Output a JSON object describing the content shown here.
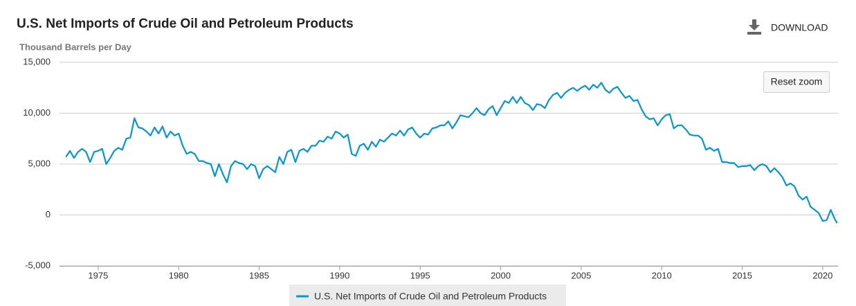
{
  "chart_data": {
    "type": "line",
    "title": "U.S. Net Imports of Crude Oil and Petroleum Products",
    "y_axis_label": "Thousand Barrels per Day",
    "download_label": "DOWNLOAD",
    "reset_zoom_label": "Reset zoom",
    "x": [
      1973,
      1973.25,
      1973.5,
      1973.75,
      1974,
      1974.25,
      1974.5,
      1974.75,
      1975,
      1975.25,
      1975.5,
      1975.75,
      1976,
      1976.25,
      1976.5,
      1976.75,
      1977,
      1977.25,
      1977.5,
      1977.75,
      1978,
      1978.25,
      1978.5,
      1978.75,
      1979,
      1979.25,
      1979.5,
      1979.75,
      1980,
      1980.25,
      1980.5,
      1980.75,
      1981,
      1981.25,
      1981.5,
      1981.75,
      1982,
      1982.25,
      1982.5,
      1982.75,
      1983,
      1983.25,
      1983.5,
      1983.75,
      1984,
      1984.25,
      1984.5,
      1984.75,
      1985,
      1985.25,
      1985.5,
      1985.75,
      1986,
      1986.25,
      1986.5,
      1986.75,
      1987,
      1987.25,
      1987.5,
      1987.75,
      1988,
      1988.25,
      1988.5,
      1988.75,
      1989,
      1989.25,
      1989.5,
      1989.75,
      1990,
      1990.25,
      1990.5,
      1990.75,
      1991,
      1991.25,
      1991.5,
      1991.75,
      1992,
      1992.25,
      1992.5,
      1992.75,
      1993,
      1993.25,
      1993.5,
      1993.75,
      1994,
      1994.25,
      1994.5,
      1994.75,
      1995,
      1995.25,
      1995.5,
      1995.75,
      1996,
      1996.25,
      1996.5,
      1996.75,
      1997,
      1997.25,
      1997.5,
      1997.75,
      1998,
      1998.25,
      1998.5,
      1998.75,
      1999,
      1999.25,
      1999.5,
      1999.75,
      2000,
      2000.25,
      2000.5,
      2000.75,
      2001,
      2001.25,
      2001.5,
      2001.75,
      2002,
      2002.25,
      2002.5,
      2002.75,
      2003,
      2003.25,
      2003.5,
      2003.75,
      2004,
      2004.25,
      2004.5,
      2004.75,
      2005,
      2005.25,
      2005.5,
      2005.75,
      2006,
      2006.25,
      2006.5,
      2006.75,
      2007,
      2007.25,
      2007.5,
      2007.75,
      2008,
      2008.25,
      2008.5,
      2008.75,
      2009,
      2009.25,
      2009.5,
      2009.75,
      2010,
      2010.25,
      2010.5,
      2010.75,
      2011,
      2011.25,
      2011.5,
      2011.75,
      2012,
      2012.25,
      2012.5,
      2012.75,
      2013,
      2013.25,
      2013.5,
      2013.75,
      2014,
      2014.25,
      2014.5,
      2014.75,
      2015,
      2015.25,
      2015.5,
      2015.75,
      2016,
      2016.25,
      2016.5,
      2016.75,
      2017,
      2017.25,
      2017.5,
      2017.75,
      2018,
      2018.25,
      2018.5,
      2018.75,
      2019,
      2019.25,
      2019.5,
      2019.75,
      2020,
      2020.25,
      2020.5,
      2020.75,
      2020.9
    ],
    "series": [
      {
        "name": "U.S. Net Imports of Crude Oil and Petroleum Products",
        "color": "#0096d7",
        "values": [
          5700,
          6300,
          5600,
          6200,
          6500,
          6200,
          5200,
          6200,
          6300,
          6500,
          5000,
          5600,
          6300,
          6600,
          6400,
          7500,
          7600,
          9500,
          8600,
          8500,
          8200,
          7800,
          8600,
          8000,
          8700,
          7600,
          8200,
          7800,
          8000,
          6800,
          6000,
          6200,
          6000,
          5300,
          5300,
          5100,
          5000,
          3800,
          5000,
          4000,
          3200,
          4800,
          5300,
          5100,
          5000,
          4500,
          5000,
          4800,
          3600,
          4500,
          4800,
          4500,
          4200,
          5700,
          5000,
          6200,
          6400,
          5200,
          6300,
          6500,
          6200,
          6800,
          6800,
          7300,
          7200,
          7700,
          7500,
          8200,
          8000,
          7600,
          7900,
          6000,
          5800,
          6800,
          7000,
          6400,
          7200,
          6700,
          7400,
          7200,
          7600,
          8000,
          7800,
          8300,
          7800,
          8400,
          8600,
          8000,
          7600,
          8000,
          7900,
          8500,
          8600,
          8800,
          8800,
          9200,
          8500,
          9100,
          9800,
          9700,
          9600,
          10000,
          10500,
          10000,
          9800,
          10400,
          10700,
          9800,
          10500,
          11200,
          11000,
          11600,
          11000,
          11600,
          11000,
          10800,
          10300,
          10900,
          10800,
          10500,
          11300,
          11800,
          12000,
          11500,
          12000,
          12300,
          12500,
          12200,
          12500,
          12700,
          12300,
          12800,
          12500,
          13000,
          12300,
          12000,
          12400,
          12600,
          12000,
          11500,
          11700,
          11200,
          11300,
          10400,
          9700,
          9400,
          9500,
          8800,
          9400,
          9800,
          9900,
          8500,
          8800,
          8800,
          8400,
          7900,
          7800,
          7800,
          7500,
          6400,
          6600,
          6300,
          6500,
          5200,
          5200,
          5100,
          5100,
          4700,
          4800,
          4800,
          4900,
          4400,
          4800,
          5000,
          4800,
          4200,
          4600,
          4200,
          3700,
          2900,
          3100,
          2800,
          1900,
          1500,
          1800,
          800,
          500,
          200,
          -600,
          -500,
          500,
          -400,
          -800
        ]
      }
    ],
    "xlim": [
      1972.6,
      2020.95
    ],
    "xticks": [
      1975,
      1980,
      1985,
      1990,
      1995,
      2000,
      2005,
      2010,
      2015,
      2020
    ],
    "ylim": [
      -5000,
      15000
    ],
    "yticks": [
      {
        "value": -5000,
        "label": "-5,000"
      },
      0,
      {
        "value": 5000,
        "label": "5,000"
      },
      {
        "value": 10000,
        "label": "10,000"
      },
      {
        "value": 15000,
        "label": "15,000"
      }
    ],
    "grid": true
  }
}
